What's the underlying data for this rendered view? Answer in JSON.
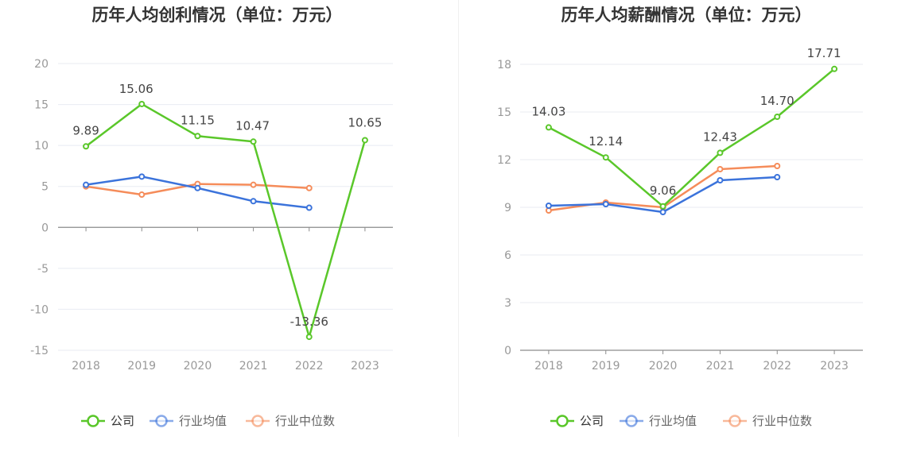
{
  "colors": {
    "company": "#5ac72a",
    "industry_avg": "#3b73db",
    "industry_median": "#f58c5a",
    "axis": "#999999",
    "grid": "#e8ebf2",
    "title": "#333333",
    "label": "#444444"
  },
  "chart_data": [
    {
      "type": "line",
      "title": "历年人均创利情况（单位：万元）",
      "categories": [
        "2018",
        "2019",
        "2020",
        "2021",
        "2022",
        "2023"
      ],
      "ylim": [
        -15,
        20
      ],
      "yticks": [
        20,
        15,
        10,
        5,
        0,
        -5,
        -10,
        -15
      ],
      "ytick_labels": [
        "20",
        "15",
        "10",
        "5",
        "0",
        "-5",
        "-10",
        "-15"
      ],
      "grid": true,
      "legend_position": "bottom",
      "series": [
        {
          "name": "公司",
          "values": [
            9.89,
            15.06,
            11.15,
            10.47,
            -13.36,
            10.65
          ],
          "labels": [
            "9.89",
            "15.06",
            "11.15",
            "10.47",
            "-13.36",
            "10.65"
          ]
        },
        {
          "name": "行业均值",
          "values": [
            5.2,
            6.2,
            4.8,
            3.2,
            2.4,
            null
          ]
        },
        {
          "name": "行业中位数",
          "values": [
            5.0,
            4.0,
            5.3,
            5.2,
            4.8,
            null
          ]
        }
      ]
    },
    {
      "type": "line",
      "title": "历年人均薪酬情况（单位：万元）",
      "categories": [
        "2018",
        "2019",
        "2020",
        "2021",
        "2022",
        "2023"
      ],
      "ylim": [
        0,
        18
      ],
      "yticks": [
        18,
        15,
        12,
        9,
        6,
        3,
        0
      ],
      "ytick_labels": [
        "18",
        "15",
        "12",
        "9",
        "6",
        "3",
        "0"
      ],
      "grid": true,
      "legend_position": "bottom",
      "series": [
        {
          "name": "公司",
          "values": [
            14.03,
            12.14,
            9.06,
            12.43,
            14.7,
            17.71
          ],
          "labels": [
            "14.03",
            "12.14",
            "9.06",
            "12.43",
            "14.70",
            "17.71"
          ]
        },
        {
          "name": "行业均值",
          "values": [
            9.1,
            9.2,
            8.7,
            10.7,
            10.9,
            null
          ]
        },
        {
          "name": "行业中位数",
          "values": [
            8.8,
            9.3,
            9.0,
            11.4,
            11.6,
            null
          ]
        }
      ]
    }
  ]
}
